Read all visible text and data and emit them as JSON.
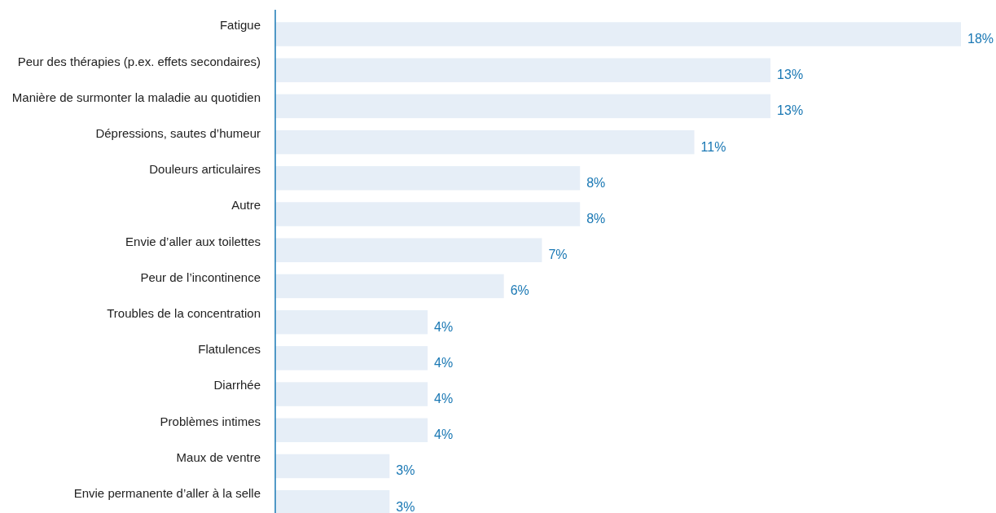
{
  "chart_data": {
    "type": "bar",
    "orientation": "horizontal",
    "categories": [
      "Fatigue",
      "Peur des thérapies (p.ex. effets secondaires)",
      "Manière de surmonter la maladie au quotidien",
      "Dépressions, sautes d’humeur",
      "Douleurs articulaires",
      "Autre",
      "Envie d’aller aux toilettes",
      "Peur de l’incontinence",
      "Troubles de la concentration",
      "Flatulences",
      "Diarrhée",
      "Problèmes intimes",
      "Maux de ventre",
      "Envie permanente d’aller à la selle"
    ],
    "values": [
      18,
      13,
      13,
      11,
      8,
      8,
      7,
      6,
      4,
      4,
      4,
      4,
      3,
      3
    ],
    "value_labels": [
      "18%",
      "13%",
      "13%",
      "11%",
      "8%",
      "8%",
      "7%",
      "6%",
      "4%",
      "4%",
      "4%",
      "4%",
      "3%",
      "3%"
    ],
    "color": "#e6eef7",
    "xlim": [
      0,
      18
    ],
    "tick_labels": "y"
  }
}
